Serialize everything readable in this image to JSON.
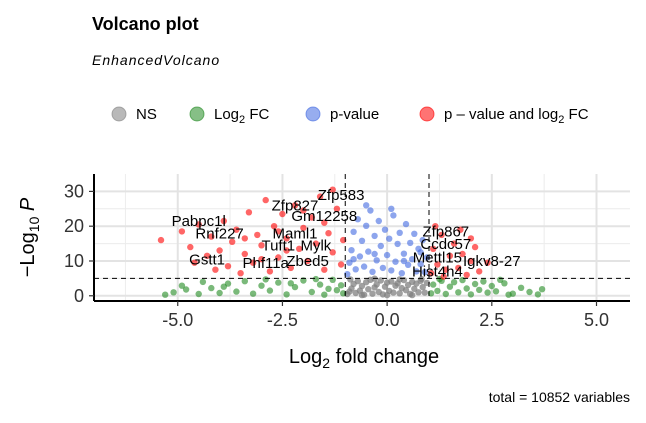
{
  "chart_data": {
    "type": "scatter",
    "title": "Volcano plot",
    "subtitle": "EnhancedVolcano",
    "caption": "total = 10852 variables",
    "xlabel": "Log2 fold change",
    "ylabel": "-Log10 P",
    "xlim": [
      -7,
      5.8
    ],
    "ylim": [
      -1.5,
      35
    ],
    "x_ticks": [
      "-5.0",
      "-2.5",
      "0.0",
      "2.5",
      "5.0"
    ],
    "y_ticks": [
      "0",
      "10",
      "20",
      "30"
    ],
    "grid": true,
    "legend_position": "top",
    "cutoffs": {
      "log2fc": 1,
      "p_value_line_neglog10": 5
    },
    "legend": [
      {
        "key": "NS",
        "label": "NS",
        "color": "#808080"
      },
      {
        "key": "FC",
        "label_main": "Log",
        "label_sub": "2",
        "label_tail": " FC",
        "color": "#228B22"
      },
      {
        "key": "P",
        "label": "p-value",
        "color": "#4169E1"
      },
      {
        "key": "FCP",
        "label_main": "p – value and log",
        "label_sub": "2",
        "label_tail": " FC",
        "color": "#FF0000"
      }
    ],
    "labeled_genes": [
      {
        "name": "Zfp583",
        "x": -1.1,
        "y": 27.5
      },
      {
        "name": "Zfp827",
        "x": -2.2,
        "y": 24.5
      },
      {
        "name": "Gm12258",
        "x": -1.5,
        "y": 21.5
      },
      {
        "name": "Pabpc1l",
        "x": -4.5,
        "y": 20
      },
      {
        "name": "Rnf227",
        "x": -4.0,
        "y": 16.5
      },
      {
        "name": "Maml1",
        "x": -2.2,
        "y": 16.5
      },
      {
        "name": "Tuft1",
        "x": -2.6,
        "y": 13
      },
      {
        "name": "Mylk",
        "x": -1.7,
        "y": 13
      },
      {
        "name": "Gstt1",
        "x": -4.3,
        "y": 9
      },
      {
        "name": "Phf11a",
        "x": -2.9,
        "y": 8
      },
      {
        "name": "Zbed5",
        "x": -1.9,
        "y": 8.5
      },
      {
        "name": "Zfp867",
        "x": 1.4,
        "y": 17
      },
      {
        "name": "Ccdc57",
        "x": 1.4,
        "y": 13.5
      },
      {
        "name": "Mettl15",
        "x": 1.2,
        "y": 9.5
      },
      {
        "name": "Hist4h4",
        "x": 1.2,
        "y": 5.5
      },
      {
        "name": "Igkv8-27",
        "x": 2.5,
        "y": 8.5
      }
    ],
    "series": [
      {
        "name": "NS",
        "color": "#808080",
        "points": [
          [
            -0.95,
            0.5
          ],
          [
            -0.9,
            1.2
          ],
          [
            -0.85,
            2.1
          ],
          [
            -0.8,
            3.4
          ],
          [
            -0.75,
            0.8
          ],
          [
            -0.7,
            4.2
          ],
          [
            -0.65,
            1.5
          ],
          [
            -0.6,
            2.8
          ],
          [
            -0.55,
            0.3
          ],
          [
            -0.5,
            3.9
          ],
          [
            -0.45,
            1.9
          ],
          [
            -0.4,
            4.6
          ],
          [
            -0.35,
            0.6
          ],
          [
            -0.3,
            2.4
          ],
          [
            -0.25,
            3.3
          ],
          [
            -0.2,
            1.1
          ],
          [
            -0.15,
            4.4
          ],
          [
            -0.1,
            0.4
          ],
          [
            -0.05,
            2.6
          ],
          [
            0.0,
            3.8
          ],
          [
            0.05,
            1.4
          ],
          [
            0.1,
            4.1
          ],
          [
            0.15,
            0.9
          ],
          [
            0.2,
            2.9
          ],
          [
            0.25,
            3.6
          ],
          [
            0.3,
            0.7
          ],
          [
            0.35,
            2.2
          ],
          [
            0.4,
            4.5
          ],
          [
            0.45,
            1.6
          ],
          [
            0.5,
            3.1
          ],
          [
            0.55,
            0.5
          ],
          [
            0.6,
            4.0
          ],
          [
            0.65,
            2.0
          ],
          [
            0.7,
            3.5
          ],
          [
            0.75,
            1.0
          ],
          [
            0.8,
            4.3
          ],
          [
            0.85,
            2.5
          ],
          [
            0.9,
            0.9
          ],
          [
            0.95,
            3.7
          ],
          [
            -0.88,
            4.7
          ],
          [
            0.82,
            4.8
          ],
          [
            -0.3,
            4.9
          ],
          [
            0.3,
            4.7
          ],
          [
            0.0,
            0.2
          ],
          [
            -0.6,
            0.2
          ],
          [
            0.6,
            0.2
          ]
        ]
      },
      {
        "name": "Log2 FC",
        "color": "#228B22",
        "points": [
          [
            -5.3,
            0.3
          ],
          [
            -4.8,
            1.8
          ],
          [
            -4.5,
            0.5
          ],
          [
            -4.2,
            2.2
          ],
          [
            -4.0,
            0.8
          ],
          [
            -3.8,
            3.5
          ],
          [
            -3.6,
            1.2
          ],
          [
            -3.4,
            4.2
          ],
          [
            -3.2,
            0.6
          ],
          [
            -3.0,
            2.9
          ],
          [
            -2.8,
            1.5
          ],
          [
            -2.6,
            3.8
          ],
          [
            -2.4,
            0.4
          ],
          [
            -2.2,
            2.5
          ],
          [
            -2.0,
            4.4
          ],
          [
            -1.8,
            1.1
          ],
          [
            -1.6,
            3.2
          ],
          [
            -1.5,
            0.3
          ],
          [
            -1.4,
            2.0
          ],
          [
            -1.3,
            4.6
          ],
          [
            -1.2,
            1.6
          ],
          [
            -1.1,
            3.0
          ],
          [
            -1.05,
            0.7
          ],
          [
            -4.4,
            4.0
          ],
          [
            -3.9,
            2.6
          ],
          [
            -2.9,
            4.7
          ],
          [
            -2.3,
            3.6
          ],
          [
            -1.7,
            4.8
          ],
          [
            -4.9,
            2.9
          ],
          [
            -5.1,
            1.0
          ],
          [
            1.05,
            0.7
          ],
          [
            1.1,
            3.2
          ],
          [
            1.2,
            1.4
          ],
          [
            1.3,
            4.3
          ],
          [
            1.4,
            0.5
          ],
          [
            1.5,
            2.6
          ],
          [
            1.6,
            3.9
          ],
          [
            1.7,
            1.0
          ],
          [
            1.8,
            4.5
          ],
          [
            1.9,
            2.1
          ],
          [
            2.0,
            0.4
          ],
          [
            2.1,
            3.4
          ],
          [
            2.2,
            1.7
          ],
          [
            2.3,
            4.1
          ],
          [
            2.4,
            0.9
          ],
          [
            2.5,
            2.8
          ],
          [
            2.6,
            1.3
          ],
          [
            2.8,
            3.6
          ],
          [
            3.0,
            0.6
          ],
          [
            3.2,
            2.3
          ],
          [
            3.4,
            1.1
          ],
          [
            3.6,
            0.4
          ],
          [
            3.7,
            1.9
          ],
          [
            2.7,
            4.6
          ],
          [
            1.25,
            4.8
          ],
          [
            2.9,
            0.3
          ]
        ]
      },
      {
        "name": "p-value",
        "color": "#4169E1",
        "points": [
          [
            -0.95,
            6.2
          ],
          [
            -0.9,
            9.5
          ],
          [
            -0.85,
            13.1
          ],
          [
            -0.8,
            18.4
          ],
          [
            -0.75,
            7.6
          ],
          [
            -0.7,
            22.0
          ],
          [
            -0.65,
            11.3
          ],
          [
            -0.6,
            15.8
          ],
          [
            -0.55,
            8.4
          ],
          [
            -0.5,
            20.1
          ],
          [
            -0.45,
            12.7
          ],
          [
            -0.4,
            24.5
          ],
          [
            -0.35,
            6.9
          ],
          [
            -0.3,
            17.2
          ],
          [
            -0.25,
            10.2
          ],
          [
            -0.2,
            21.5
          ],
          [
            -0.15,
            14.3
          ],
          [
            -0.1,
            8.0
          ],
          [
            -0.05,
            19.0
          ],
          [
            0.0,
            11.7
          ],
          [
            0.05,
            16.4
          ],
          [
            0.1,
            7.3
          ],
          [
            0.15,
            23.1
          ],
          [
            0.2,
            9.8
          ],
          [
            0.25,
            14.9
          ],
          [
            0.3,
            18.1
          ],
          [
            0.35,
            6.5
          ],
          [
            0.4,
            12.1
          ],
          [
            0.45,
            20.6
          ],
          [
            0.5,
            8.9
          ],
          [
            0.55,
            15.2
          ],
          [
            0.6,
            10.5
          ],
          [
            0.65,
            17.8
          ],
          [
            0.7,
            7.0
          ],
          [
            0.75,
            13.5
          ],
          [
            0.8,
            9.1
          ],
          [
            0.85,
            16.0
          ],
          [
            0.9,
            6.8
          ],
          [
            0.95,
            11.0
          ],
          [
            -0.5,
            26.0
          ],
          [
            0.1,
            25.0
          ],
          [
            -0.3,
            12.0
          ],
          [
            0.4,
            10.0
          ],
          [
            -0.8,
            10.5
          ],
          [
            0.8,
            12.5
          ]
        ]
      },
      {
        "name": "p-value and log2 FC",
        "color": "#FF0000",
        "points": [
          [
            -5.4,
            16.0
          ],
          [
            -4.9,
            18.5
          ],
          [
            -4.7,
            14.0
          ],
          [
            -4.6,
            9.5
          ],
          [
            -4.5,
            20.5
          ],
          [
            -4.3,
            11.5
          ],
          [
            -4.2,
            17.0
          ],
          [
            -4.1,
            7.5
          ],
          [
            -4.0,
            13.0
          ],
          [
            -3.9,
            21.5
          ],
          [
            -3.8,
            8.5
          ],
          [
            -3.7,
            15.5
          ],
          [
            -3.6,
            19.0
          ],
          [
            -3.5,
            6.5
          ],
          [
            -3.4,
            12.0
          ],
          [
            -3.3,
            24.0
          ],
          [
            -3.2,
            9.5
          ],
          [
            -3.1,
            17.5
          ],
          [
            -3.0,
            14.5
          ],
          [
            -2.9,
            27.5
          ],
          [
            -2.8,
            7.0
          ],
          [
            -2.7,
            20.0
          ],
          [
            -2.6,
            11.0
          ],
          [
            -2.5,
            23.5
          ],
          [
            -2.4,
            16.5
          ],
          [
            -2.3,
            8.0
          ],
          [
            -2.2,
            26.0
          ],
          [
            -2.1,
            13.5
          ],
          [
            -2.0,
            19.5
          ],
          [
            -1.9,
            10.0
          ],
          [
            -1.8,
            22.5
          ],
          [
            -1.7,
            15.0
          ],
          [
            -1.6,
            28.5
          ],
          [
            -1.5,
            7.5
          ],
          [
            -1.4,
            18.0
          ],
          [
            -1.3,
            12.5
          ],
          [
            -1.2,
            25.0
          ],
          [
            -1.1,
            9.0
          ],
          [
            -1.05,
            16.0
          ],
          [
            -1.3,
            30.5
          ],
          [
            -2.0,
            24.5
          ],
          [
            -2.6,
            18.5
          ],
          [
            -3.4,
            16.5
          ],
          [
            -1.5,
            21.0
          ],
          [
            -2.4,
            13.0
          ],
          [
            -3.0,
            10.5
          ],
          [
            1.05,
            6.5
          ],
          [
            1.1,
            13.5
          ],
          [
            1.2,
            9.0
          ],
          [
            1.3,
            17.5
          ],
          [
            1.4,
            7.5
          ],
          [
            1.5,
            11.5
          ],
          [
            1.6,
            15.0
          ],
          [
            1.7,
            8.0
          ],
          [
            1.8,
            12.0
          ],
          [
            1.9,
            6.0
          ],
          [
            2.0,
            10.0
          ],
          [
            2.1,
            14.0
          ],
          [
            2.2,
            7.0
          ],
          [
            2.4,
            9.5
          ],
          [
            1.15,
            20.0
          ],
          [
            1.35,
            5.5
          ],
          [
            1.75,
            19.0
          ],
          [
            2.0,
            16.5
          ]
        ]
      }
    ]
  }
}
